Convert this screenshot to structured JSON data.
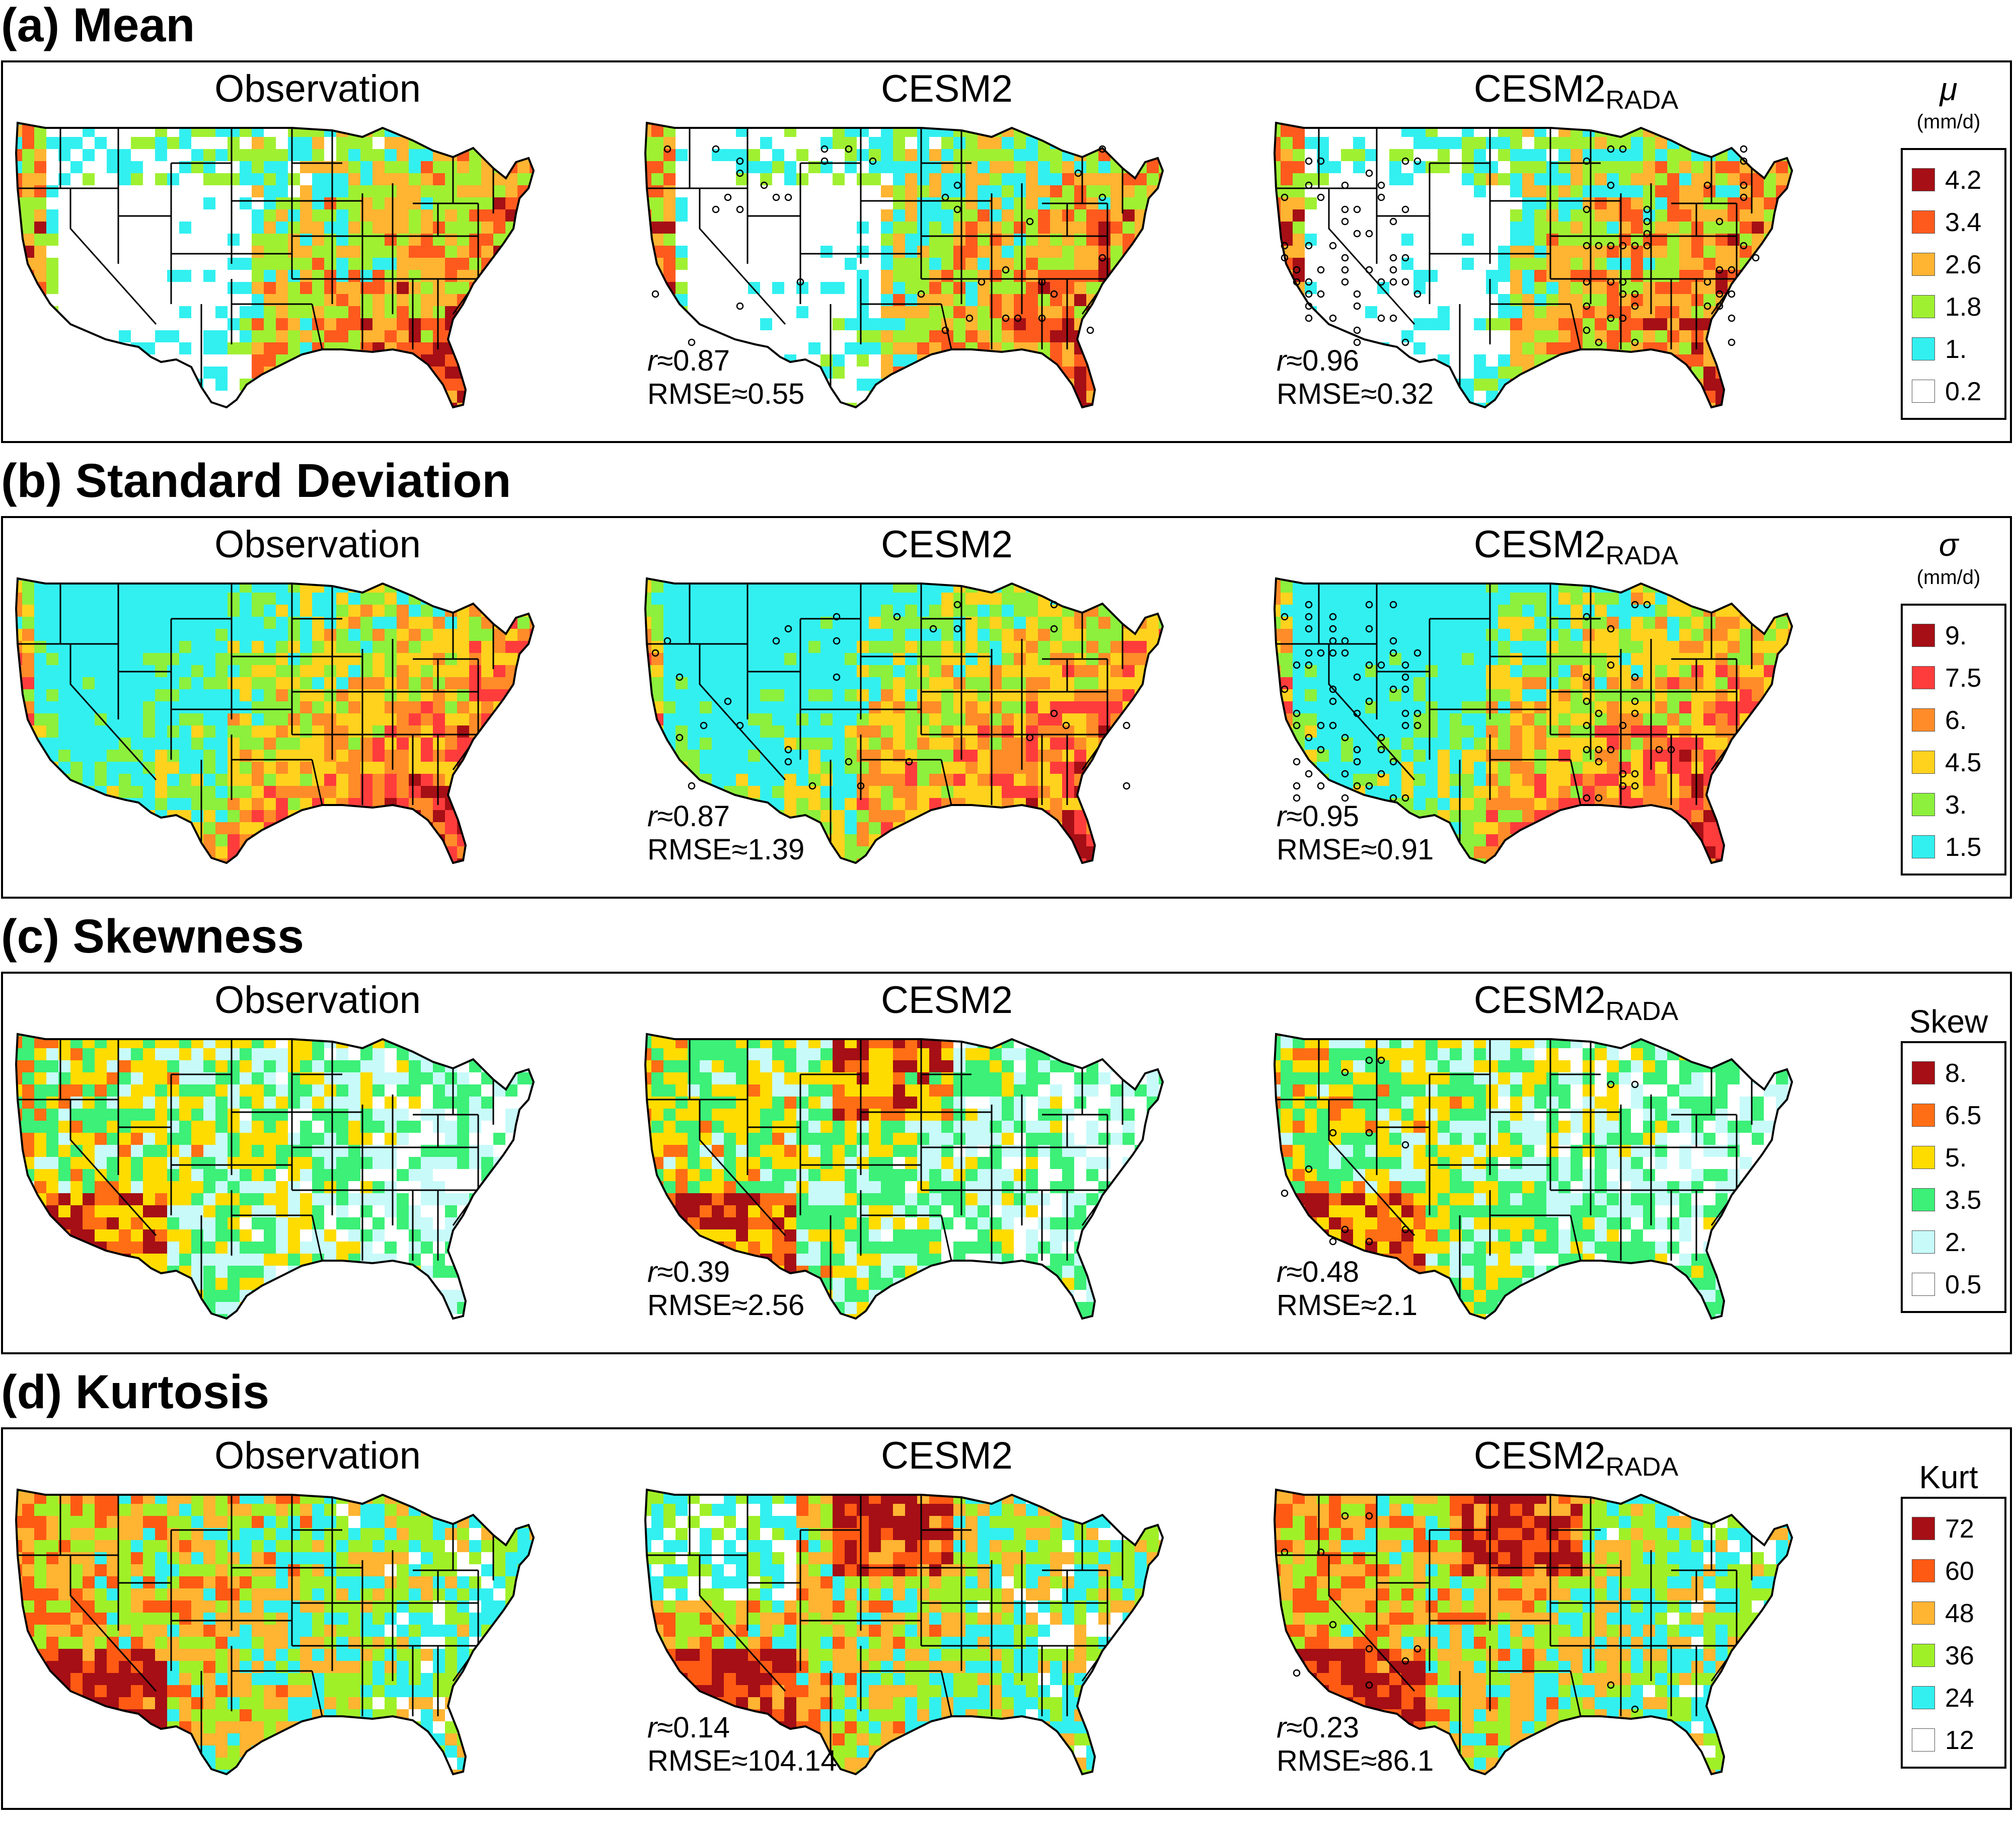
{
  "panels": [
    {
      "label": "Observation",
      "sub": "",
      "r": "",
      "rmse": ""
    },
    {
      "label": "CESM2",
      "sub": "",
      "r": "r≈0.87",
      "rmse": "RMSE≈0.55"
    },
    {
      "label": "CESM2",
      "sub": "RADA",
      "r": "r≈0.96",
      "rmse": "RMSE≈0.32"
    }
  ],
  "sections": [
    {
      "title": "(a) Mean",
      "legend": {
        "var": "μ",
        "unit": "(mm/d)",
        "items": [
          {
            "label": "4.2",
            "color": "#a50f15"
          },
          {
            "label": "3.4",
            "color": "#ff5a1e"
          },
          {
            "label": "2.6",
            "color": "#ffb432"
          },
          {
            "label": "1.8",
            "color": "#a0f032"
          },
          {
            "label": "1.",
            "color": "#32f0f0"
          },
          {
            "label": "0.2",
            "color": "#ffffff"
          }
        ]
      },
      "stats": [
        {
          "r": "",
          "rmse": ""
        },
        {
          "r": "r≈0.87",
          "rmse": "RMSE≈0.55"
        },
        {
          "r": "r≈0.96",
          "rmse": "RMSE≈0.32"
        }
      ]
    },
    {
      "title": "(b) Standard Deviation",
      "legend": {
        "var": "σ",
        "unit": "(mm/d)",
        "items": [
          {
            "label": "9.",
            "color": "#a50f15"
          },
          {
            "label": "7.5",
            "color": "#ff3c3c"
          },
          {
            "label": "6.",
            "color": "#ff8c28"
          },
          {
            "label": "4.5",
            "color": "#ffd21e"
          },
          {
            "label": "3.",
            "color": "#8cf03c"
          },
          {
            "label": "1.5",
            "color": "#32f0f0"
          }
        ]
      },
      "stats": [
        {
          "r": "",
          "rmse": ""
        },
        {
          "r": "r≈0.87",
          "rmse": "RMSE≈1.39"
        },
        {
          "r": "r≈0.95",
          "rmse": "RMSE≈0.91"
        }
      ]
    },
    {
      "title": "(c) Skewness",
      "legend": {
        "var": "Skew",
        "unit": "",
        "items": [
          {
            "label": "8.",
            "color": "#a50f15"
          },
          {
            "label": "6.5",
            "color": "#ff6e14"
          },
          {
            "label": "5.",
            "color": "#ffdc00"
          },
          {
            "label": "3.5",
            "color": "#3cf078"
          },
          {
            "label": "2.",
            "color": "#c8fafa"
          },
          {
            "label": "0.5",
            "color": "#ffffff"
          }
        ]
      },
      "stats": [
        {
          "r": "",
          "rmse": ""
        },
        {
          "r": "r≈0.39",
          "rmse": "RMSE≈2.56"
        },
        {
          "r": "r≈0.48",
          "rmse": "RMSE≈2.1"
        }
      ]
    },
    {
      "title": "(d) Kurtosis",
      "legend": {
        "var": "Kurt",
        "unit": "",
        "items": [
          {
            "label": "72",
            "color": "#a50f15"
          },
          {
            "label": "60",
            "color": "#ff5a14"
          },
          {
            "label": "48",
            "color": "#ffb432"
          },
          {
            "label": "36",
            "color": "#a0f028"
          },
          {
            "label": "24",
            "color": "#32f0f0"
          },
          {
            "label": "12",
            "color": "#ffffff"
          }
        ]
      },
      "stats": [
        {
          "r": "",
          "rmse": ""
        },
        {
          "r": "r≈0.14",
          "rmse": "RMSE≈104.14"
        },
        {
          "r": "r≈0.23",
          "rmse": "RMSE≈86.1"
        }
      ]
    }
  ]
}
